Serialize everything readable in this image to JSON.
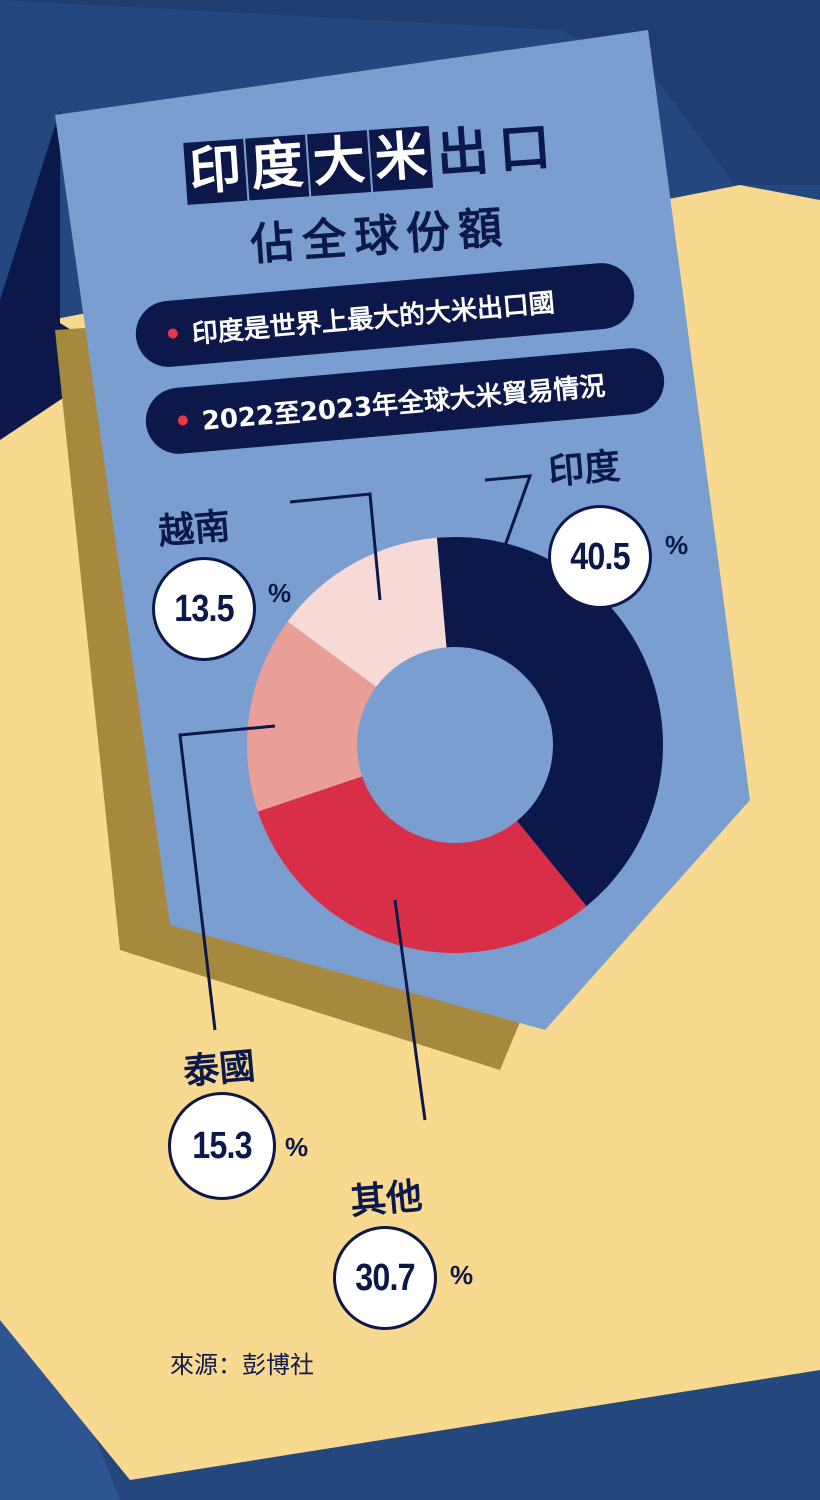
{
  "title": {
    "line1_chars": [
      "印",
      "度",
      "大",
      "米",
      "出",
      "口"
    ],
    "line1_boxed": [
      true,
      true,
      true,
      true,
      false,
      false
    ],
    "line2": "佔全球份額"
  },
  "bullets": [
    "印度是世界上最大的大米出口國",
    "2022至2023年全球大米貿易情況"
  ],
  "percent_sign": "%",
  "source": "來源：彭博社",
  "colors": {
    "dark_navy": "#0c1849",
    "panel_blue": "#7b9ed1",
    "cream": "#f7d98f",
    "olive_shadow": "#a6893f",
    "deep_blue": "#24487e",
    "accent_red": "#d92e47"
  },
  "chart_data": {
    "type": "pie",
    "donut": true,
    "title": "",
    "labels": [
      "印度",
      "其他",
      "泰國",
      "越南"
    ],
    "values": [
      40.5,
      30.7,
      15.3,
      13.5
    ],
    "value_labels": [
      "40.5",
      "30.7",
      "15.3",
      "13.5"
    ],
    "unit": "%",
    "colors": [
      "#0c1849",
      "#d92e47",
      "#e99e97",
      "#f7dad7"
    ],
    "legend": "none"
  }
}
